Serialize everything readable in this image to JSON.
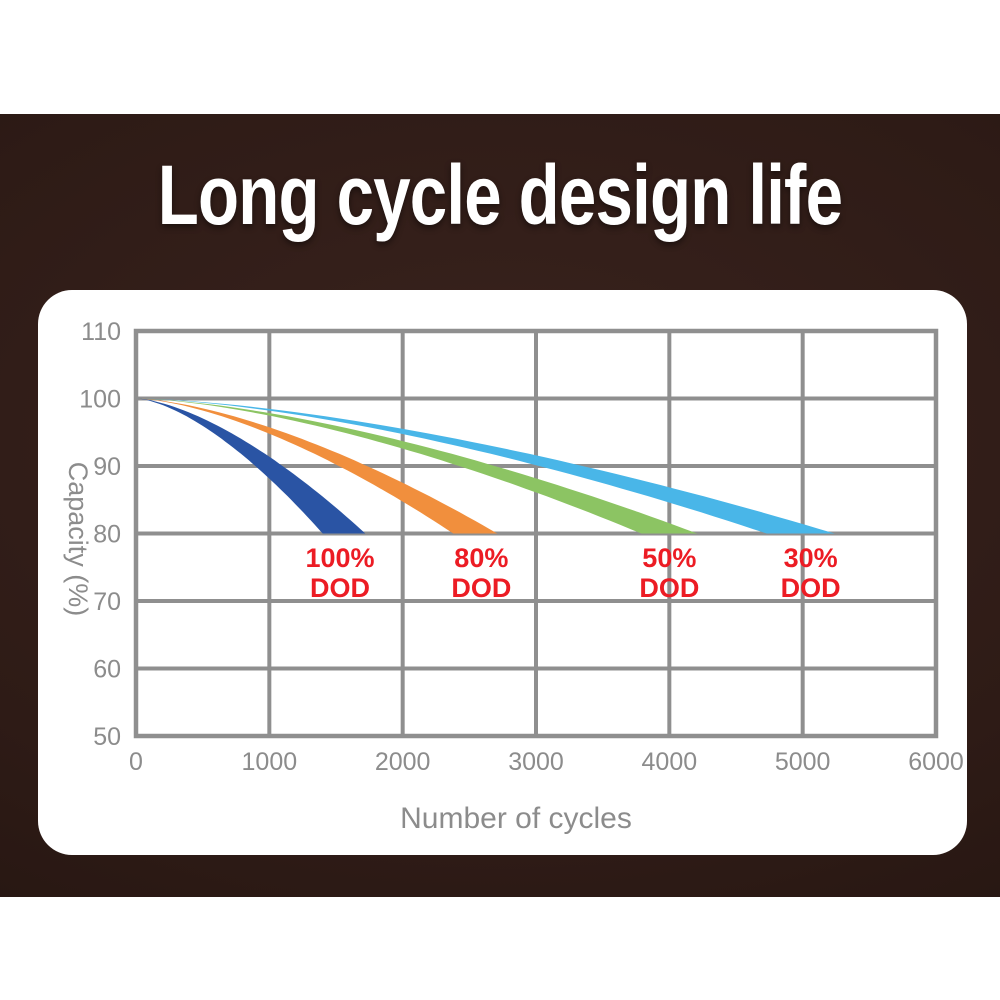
{
  "header": {
    "title": "Long cycle design life"
  },
  "theme": {
    "banner_color": "#2e1b16",
    "banner_vignette_color": "#20120e",
    "title_color": "#ffffff",
    "card_color": "#ffffff"
  },
  "chart_data": {
    "type": "area",
    "title": "Long cycle design life",
    "xlabel": "Number of cycles",
    "ylabel": "Capacity (%)",
    "xlim": [
      0,
      6000
    ],
    "ylim": [
      50,
      110
    ],
    "x_ticks": [
      0,
      1000,
      2000,
      3000,
      4000,
      5000,
      6000
    ],
    "y_ticks": [
      110,
      100,
      90,
      80,
      70,
      60,
      50
    ],
    "grid": true,
    "legend_position": "none",
    "grid_color": "#8f8f8f",
    "tick_label_color": "#8c8c8c",
    "axis_title_color": "#8c8c8c",
    "series": [
      {
        "name": "100% DOD",
        "color": "#2a54a4",
        "start_cycles": 0,
        "start_capacity": 100,
        "end_capacity": 80,
        "cycles_at_80pct_lower_edge": 1400,
        "cycles_at_80pct_upper_edge": 1720,
        "curve_exponent": 1.55
      },
      {
        "name": "80% DOD",
        "color": "#f18f3d",
        "start_cycles": 0,
        "start_capacity": 100,
        "end_capacity": 80,
        "cycles_at_80pct_lower_edge": 2380,
        "cycles_at_80pct_upper_edge": 2710,
        "curve_exponent": 1.55
      },
      {
        "name": "50% DOD",
        "color": "#8cc463",
        "start_cycles": 0,
        "start_capacity": 100,
        "end_capacity": 80,
        "cycles_at_80pct_lower_edge": 3790,
        "cycles_at_80pct_upper_edge": 4210,
        "curve_exponent": 1.55
      },
      {
        "name": "30% DOD",
        "color": "#49b6e8",
        "start_cycles": 0,
        "start_capacity": 100,
        "end_capacity": 80,
        "cycles_at_80pct_lower_edge": 4730,
        "cycles_at_80pct_upper_edge": 5240,
        "curve_exponent": 1.55
      }
    ],
    "annotations": [
      {
        "text_line1": "100%",
        "text_line2": "DOD",
        "at_cycles": 1530,
        "at_capacity": 76.4,
        "color": "#ec1c24"
      },
      {
        "text_line1": "80%",
        "text_line2": "DOD",
        "at_cycles": 2590,
        "at_capacity": 76.4,
        "color": "#ec1c24"
      },
      {
        "text_line1": "50%",
        "text_line2": "DOD",
        "at_cycles": 4000,
        "at_capacity": 76.4,
        "color": "#ec1c24"
      },
      {
        "text_line1": "30%",
        "text_line2": "DOD",
        "at_cycles": 5060,
        "at_capacity": 76.4,
        "color": "#ec1c24"
      }
    ]
  }
}
